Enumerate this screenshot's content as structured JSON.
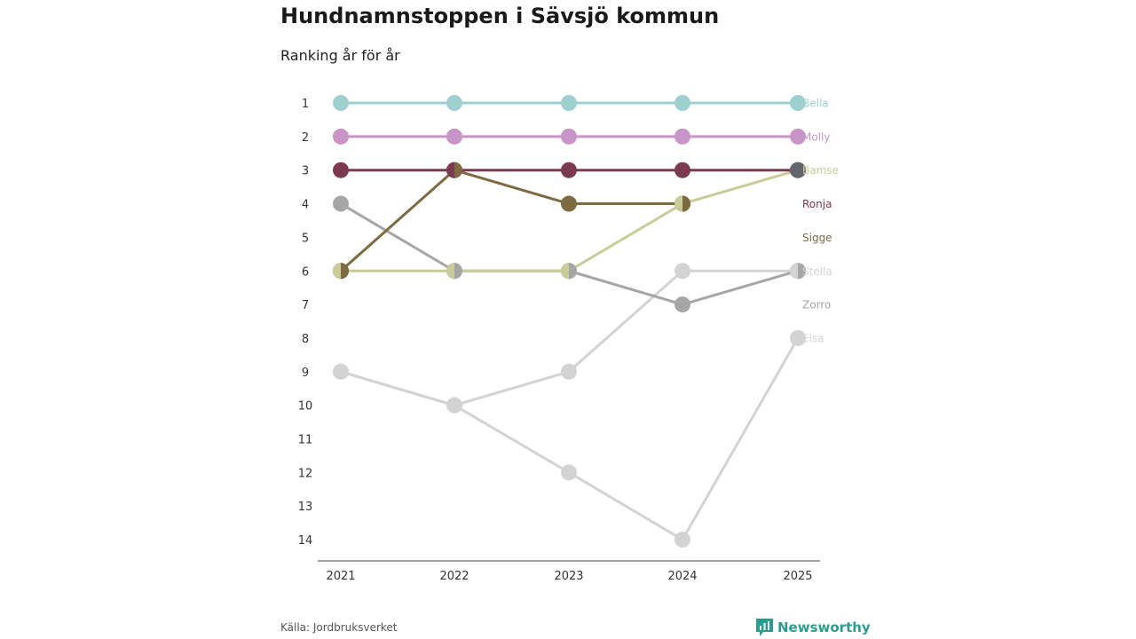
{
  "chart_data": {
    "type": "bump",
    "title": "Hundnamnstoppen i Sävsjö kommun",
    "subtitle": "Ranking år för år",
    "years": [
      "2021",
      "2022",
      "2023",
      "2024",
      "2025"
    ],
    "y_ticks": [
      "1",
      "2",
      "3",
      "4",
      "5",
      "6",
      "7",
      "8",
      "9",
      "10",
      "11",
      "12",
      "13",
      "14"
    ],
    "ylim": [
      1,
      14
    ],
    "series": [
      {
        "name": "Elsa",
        "color": "#d3d3d3",
        "ranks": [
          9,
          10,
          12,
          14,
          8
        ]
      },
      {
        "name": "Stella",
        "color": "#d3d3d3",
        "ranks": [
          9,
          10,
          9,
          6,
          6
        ]
      },
      {
        "name": "Zorro",
        "color": "#a6a6a6",
        "ranks": [
          4,
          6,
          6,
          7,
          6
        ]
      },
      {
        "name": "Bamse",
        "color": "#c9cb99",
        "ranks": [
          6,
          6,
          6,
          4,
          3
        ]
      },
      {
        "name": "Sigge",
        "color": "#7d6a40",
        "ranks": [
          6,
          3,
          4,
          4,
          null
        ]
      },
      {
        "name": "Ronja",
        "color": "#7c3a50",
        "ranks": [
          3,
          3,
          3,
          3,
          3
        ]
      },
      {
        "name": "Molly",
        "color": "#c994c7",
        "ranks": [
          2,
          2,
          2,
          2,
          2
        ]
      },
      {
        "name": "Bella",
        "color": "#9ed0d0",
        "ranks": [
          1,
          1,
          1,
          1,
          1
        ]
      }
    ],
    "labels": [
      {
        "name": "Bella",
        "rank": 1,
        "color": "#9ed0d0"
      },
      {
        "name": "Molly",
        "rank": 2,
        "color": "#c994c7"
      },
      {
        "name": "Bamse",
        "rank": 3,
        "color": "#c9cb99"
      },
      {
        "name": "Ronja",
        "rank": 4,
        "color": "#7c3a50"
      },
      {
        "name": "Sigge",
        "rank": 5,
        "color": "#7d6a40"
      },
      {
        "name": "Stella",
        "rank": 6,
        "color": "#d3d3d3"
      },
      {
        "name": "Zorro",
        "rank": 7,
        "color": "#a6a6a6"
      },
      {
        "name": "Elsa",
        "rank": 8,
        "color": "#d3d3d3"
      }
    ]
  },
  "footer": {
    "source": "Källa: Jordbruksverket",
    "brand": "Newsworthy",
    "brand_color": "#2a9d8f"
  }
}
